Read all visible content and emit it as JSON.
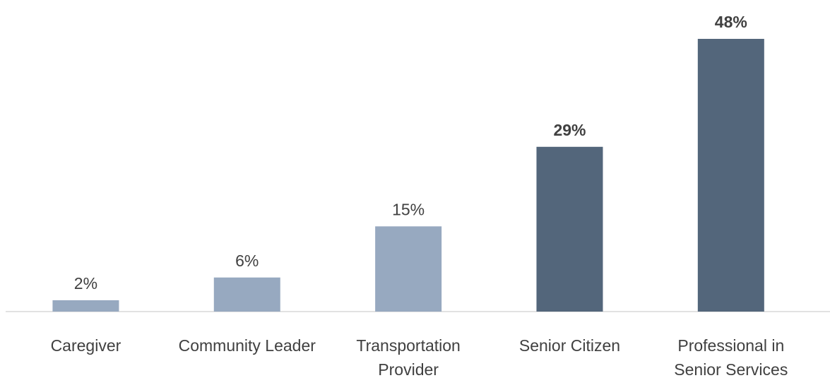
{
  "chart_data": {
    "type": "bar",
    "categories": [
      "Caregiver",
      "Community Leader",
      "Transportation Provider",
      "Senior Citizen",
      "Professional in Senior Services"
    ],
    "values": [
      2,
      6,
      15,
      29,
      48
    ],
    "value_labels": [
      "2%",
      "6%",
      "15%",
      "29%",
      "48%"
    ],
    "colors": [
      "#97a9c0",
      "#97a9c0",
      "#97a9c0",
      "#53667b",
      "#53667b"
    ],
    "value_label_bold": [
      false,
      false,
      false,
      true,
      true
    ],
    "ylim": [
      0,
      48
    ]
  }
}
